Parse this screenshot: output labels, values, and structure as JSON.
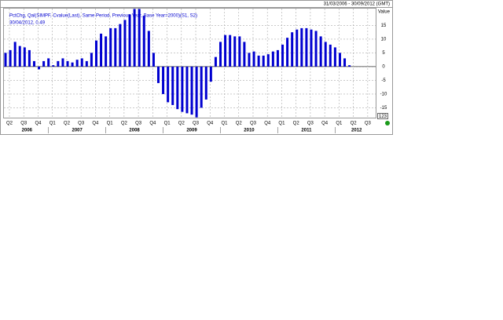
{
  "chart_data": {
    "type": "bar",
    "date_range": "31/03/2006 - 30/09/2012 (GMT)",
    "y_axis_label": "Value",
    "annotation": "30/04/2012, 0.49",
    "badge": "123",
    "categories": [
      "Q2",
      null,
      null,
      "Q3",
      null,
      null,
      "Q4",
      null,
      null,
      "Q1",
      null,
      null,
      "Q2",
      null,
      null,
      "Q3",
      null,
      null,
      "Q4",
      null,
      null,
      "Q1",
      null,
      null,
      "Q2",
      null,
      null,
      "Q3",
      null,
      null,
      "Q4",
      null,
      null,
      "Q1",
      null,
      null,
      "Q2",
      null,
      null,
      "Q3",
      null,
      null,
      "Q4",
      null,
      null,
      "Q1",
      null,
      null,
      "Q2",
      null,
      null,
      "Q3",
      null,
      null,
      "Q4",
      null,
      null,
      "Q1",
      null,
      null,
      "Q2",
      null,
      null,
      "Q3",
      null,
      null,
      "Q4",
      null,
      null,
      "Q1",
      null,
      null,
      "Q2",
      null,
      null,
      "Q3",
      null,
      null
    ],
    "years": [
      "2006",
      "2007",
      "2008",
      "2009",
      "2010",
      "2011",
      "2012"
    ],
    "series": [
      {
        "name": "PctChg, Qal(SIMPF, Cvalue(Last), Same Period, Previous Year, Base Year=2000)(S1, S2)",
        "color": "#0000d0",
        "values": [
          5,
          6,
          9,
          7.5,
          7,
          6,
          2,
          -1,
          2,
          3,
          0.5,
          2,
          3,
          2,
          1.5,
          2.5,
          3,
          2,
          5,
          9.5,
          12,
          11,
          14,
          14,
          15.5,
          17,
          19,
          21,
          21,
          18.5,
          13,
          5,
          -6,
          -10,
          -13,
          -14,
          -15.5,
          -16.5,
          -17,
          -17.5,
          -18.5,
          -15,
          -12,
          -5.5,
          3.5,
          9,
          11.5,
          11.5,
          11,
          11,
          9,
          5,
          5.5,
          4,
          4,
          4.5,
          5.5,
          6,
          8,
          10.5,
          12.5,
          13.5,
          14,
          14,
          13.5,
          13,
          11,
          9,
          8,
          7,
          5,
          3,
          0.49,
          null,
          null,
          null,
          null,
          null
        ]
      }
    ],
    "ylim": [
      -18.6,
      21.4
    ],
    "yticks": [
      15,
      10,
      5,
      0,
      -5,
      -10,
      -15
    ],
    "grid": true
  }
}
